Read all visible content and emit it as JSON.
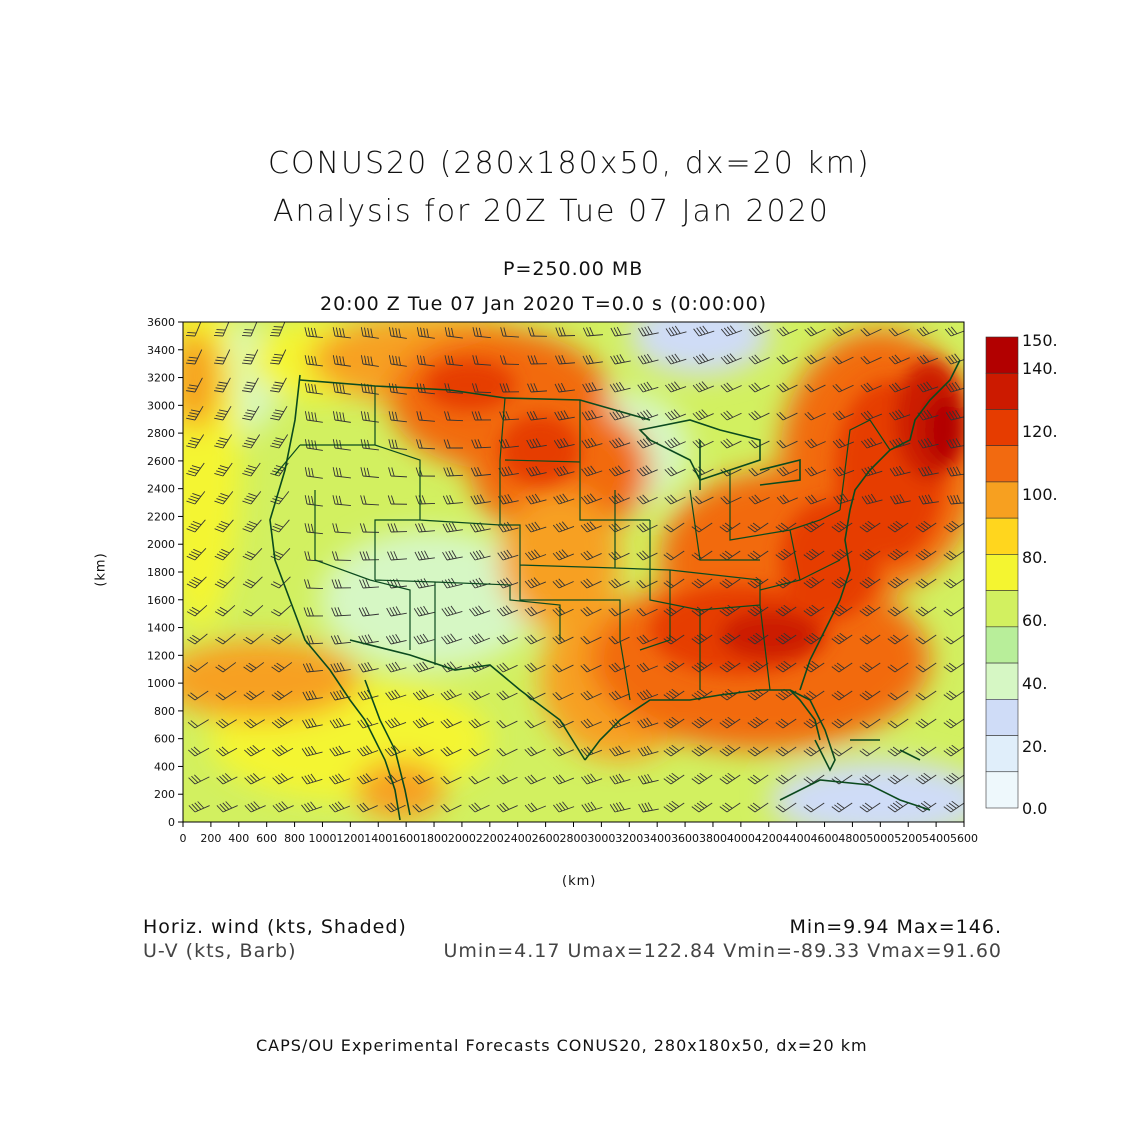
{
  "title": {
    "line1": "CONUS20 (280x180x50, dx=20 km)",
    "line2": "Analysis for 20Z Tue 07 Jan 2020"
  },
  "subtitle": {
    "level": "P=250.00 MB",
    "time": "20:00 Z Tue 07 Jan 2020    T=0.0 s (0:00:00)"
  },
  "axes": {
    "xlabel": "(km)",
    "ylabel": "(km)",
    "x_ticks": [
      "0",
      "200",
      "400",
      "600",
      "800",
      "1000",
      "1200",
      "1400",
      "1600",
      "1800",
      "2000",
      "2200",
      "2400",
      "2600",
      "2800",
      "3000",
      "3200",
      "3400",
      "3600",
      "3800",
      "4000",
      "4200",
      "4400",
      "4600",
      "4800",
      "5000",
      "5200",
      "5400",
      "5600"
    ],
    "y_ticks": [
      "0",
      "200",
      "400",
      "600",
      "800",
      "1000",
      "1200",
      "1400",
      "1600",
      "1800",
      "2000",
      "2200",
      "2400",
      "2600",
      "2800",
      "3000",
      "3200",
      "3400",
      "3600"
    ]
  },
  "colorbar": {
    "labels": [
      "150.",
      "140.",
      "120.",
      "100.",
      "80.",
      "60.",
      "40.",
      "20.",
      "0.0"
    ],
    "colors": [
      "#b20000",
      "#cc1a00",
      "#e63c00",
      "#f26a10",
      "#f7a020",
      "#ffd61e",
      "#f4f530",
      "#d2f060",
      "#b8ee9a",
      "#d6f7c4",
      "#cfdcf7",
      "#e0eefa",
      "#eef8fc"
    ]
  },
  "legend": {
    "left1": "Horiz. wind (kts, Shaded)",
    "left2": "U-V (kts, Barb)",
    "right1": "Min=9.94 Max=146.",
    "right2": "Umin=4.17 Umax=122.84 Vmin=-89.33 Vmax=91.60"
  },
  "footer": "CAPS/OU Experimental Forecasts  CONUS20, 280x180x50, dx=20 km",
  "map_colors": {
    "boundary": "#0b4a1e",
    "barb": "#333333"
  }
}
